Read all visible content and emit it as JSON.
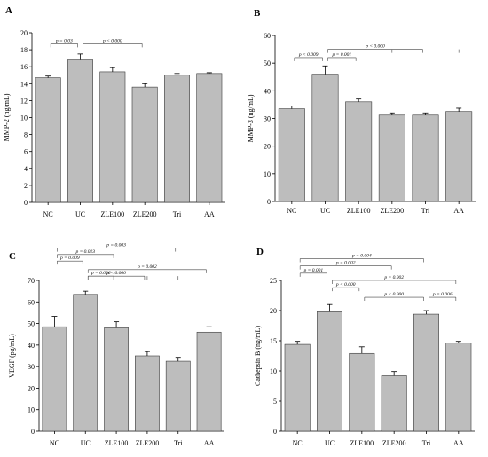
{
  "chart_data": [
    {
      "panel": "A",
      "type": "bar",
      "categories": [
        "NC",
        "UC",
        "ZLE100",
        "ZLE200",
        "Tri",
        "AA"
      ],
      "values": [
        14.7,
        16.8,
        15.4,
        13.6,
        15.0,
        15.2
      ],
      "errors": [
        0.2,
        0.7,
        0.5,
        0.4,
        0.2,
        0.1
      ],
      "ylabel": "MMP-2 (ng/mL)",
      "ylim": [
        0,
        20
      ],
      "yticks": [
        "0",
        "2",
        "4",
        "6",
        "8",
        "10",
        "12",
        "14",
        "16",
        "18",
        "20"
      ],
      "annotations": [
        {
          "text": "p = 0.03",
          "from": 0,
          "to": 1,
          "targets": [],
          "y": 18.7
        },
        {
          "text": "p < 0.000",
          "from": 1,
          "to": 3,
          "targets": [],
          "y": 18.7
        }
      ]
    },
    {
      "panel": "B",
      "type": "bar",
      "categories": [
        "NC",
        "UC",
        "ZLE100",
        "ZLE200",
        "Tri",
        "AA"
      ],
      "values": [
        33.5,
        46.0,
        36.0,
        31.2,
        31.2,
        32.5
      ],
      "errors": [
        1.0,
        3.0,
        1.0,
        0.8,
        0.8,
        1.2
      ],
      "ylabel": "MMP-3 (ng/mL)",
      "ylim": [
        0,
        60
      ],
      "yticks": [
        "0",
        "10",
        "20",
        "30",
        "40",
        "50",
        "60"
      ],
      "annotations": [
        {
          "text": "p < 0.009",
          "from": 0,
          "to": 1,
          "targets": [],
          "y": 52
        },
        {
          "text": "p = 0.001",
          "from": 1,
          "to": 2,
          "targets": [],
          "y": 52
        },
        {
          "text": "p < 0.000",
          "from": 1,
          "to": 4,
          "targets": [
            3,
            5
          ],
          "y": 55
        }
      ]
    },
    {
      "panel": "C",
      "type": "bar",
      "categories": [
        "NC",
        "UC",
        "ZLE100",
        "ZLE200",
        "Tri",
        "AA"
      ],
      "values": [
        48.5,
        63.5,
        48.0,
        35.0,
        32.5,
        46.0
      ],
      "errors": [
        4.8,
        1.5,
        2.8,
        2.0,
        1.8,
        2.5
      ],
      "ylabel": "VEGF (pg/mL)",
      "ylim": [
        0,
        70
      ],
      "yticks": [
        "0",
        "10",
        "20",
        "30",
        "40",
        "50",
        "60",
        "70"
      ],
      "annotations": [
        {
          "text": "p = 0.009",
          "from": 0,
          "to": 1,
          "targets": [],
          "y": 79
        },
        {
          "text": "p = 0.023",
          "from": 0,
          "to": 2,
          "targets": [],
          "y": 82
        },
        {
          "text": "p = 0.003",
          "from": 0,
          "to": 4,
          "targets": [],
          "y": 85
        },
        {
          "text": "p = 0.006",
          "from": 1,
          "to": 2,
          "targets": [],
          "y": 72
        },
        {
          "text": "p = 0.002",
          "from": 1,
          "to": 5,
          "targets": [],
          "y": 75
        },
        {
          "text": "p < 0.000",
          "from": 1,
          "to": 3,
          "targets": [
            3,
            4
          ],
          "y": 72
        }
      ]
    },
    {
      "panel": "D",
      "type": "bar",
      "categories": [
        "NC",
        "UC",
        "ZLE100",
        "ZLE200",
        "Tri",
        "AA"
      ],
      "values": [
        14.4,
        19.8,
        12.9,
        9.2,
        19.4,
        14.6
      ],
      "errors": [
        0.5,
        1.2,
        1.1,
        0.7,
        0.6,
        0.3
      ],
      "ylabel": "Cathepsin B (ng/mL)",
      "ylim": [
        0,
        25
      ],
      "yticks": [
        "0",
        "5",
        "10",
        "15",
        "20",
        "25"
      ],
      "annotations": [
        {
          "text": "p = 0.001",
          "from": 0,
          "to": 1,
          "targets": [],
          "y": 26.2
        },
        {
          "text": "p = 0.002",
          "from": 0,
          "to": 3,
          "targets": [],
          "y": 27.4
        },
        {
          "text": "p = 0.004",
          "from": 0,
          "to": 4,
          "targets": [],
          "y": 28.6
        },
        {
          "text": "p < 0.000",
          "from": 1,
          "to": 2,
          "targets": [],
          "y": 23.8
        },
        {
          "text": "p = 0.002",
          "from": 1,
          "to": 5,
          "targets": [],
          "y": 25.0
        },
        {
          "text": "p < 0.000",
          "from": 2,
          "to": 4,
          "targets": [],
          "y": 22.2
        },
        {
          "text": "p = 0.006",
          "from": 4,
          "to": 5,
          "targets": [],
          "y": 22.2
        }
      ]
    }
  ],
  "style": {
    "bar_color": "#bdbdbd",
    "edge_color": "#3a3a3a"
  }
}
